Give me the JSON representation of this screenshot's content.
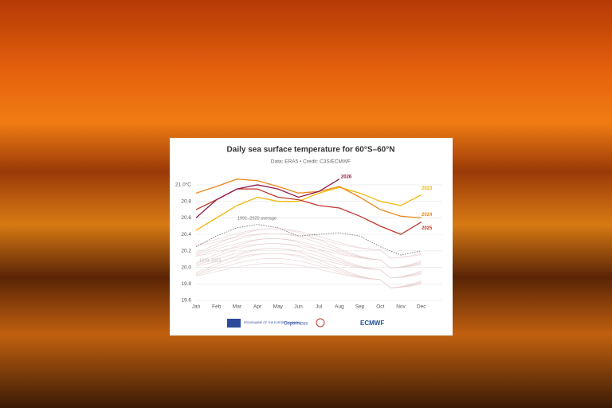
{
  "chart_data": {
    "type": "line",
    "title": "Daily sea surface temperature for 60°S–60°N",
    "subtitle": "Data: ERA5 • Credit: C3S/ECMWF",
    "categories": [
      "Jan",
      "Feb",
      "Mar",
      "Apr",
      "May",
      "Jun",
      "Jul",
      "Aug",
      "Sep",
      "Oct",
      "Nov",
      "Dec"
    ],
    "series": [
      {
        "name": "1991–2020 average",
        "color": "#777777",
        "dash": true,
        "values": [
          20.25,
          20.38,
          20.48,
          20.52,
          20.48,
          20.38,
          20.4,
          20.42,
          20.38,
          20.25,
          20.15,
          20.2
        ]
      },
      {
        "name": "2023",
        "color": "#f2b705",
        "values": [
          20.45,
          20.6,
          20.75,
          20.85,
          20.8,
          20.8,
          20.9,
          20.97,
          20.9,
          20.8,
          20.75,
          20.88
        ]
      },
      {
        "name": "2024",
        "color": "#e8891a",
        "values": [
          20.9,
          20.98,
          21.07,
          21.05,
          20.98,
          20.9,
          20.92,
          20.98,
          20.85,
          20.7,
          20.62,
          20.6
        ]
      },
      {
        "name": "2025",
        "color": "#c0392b",
        "values": [
          20.7,
          20.82,
          20.95,
          20.95,
          20.85,
          20.82,
          20.75,
          20.72,
          20.62,
          20.5,
          20.4,
          20.55
        ]
      },
      {
        "name": "2026",
        "color": "#8e1a4a",
        "values": [
          20.6,
          20.82,
          20.95,
          21.0,
          20.95,
          20.85,
          20.92,
          21.07,
          null,
          null,
          null,
          null
        ]
      }
    ],
    "annotations": [
      "1979–2021"
    ],
    "ylim": [
      19.6,
      21.1
    ],
    "yticks": [
      19.6,
      19.8,
      {
        "value": 20.0,
        "label": "20.0"
      },
      20.2,
      20.4,
      20.6,
      20.8,
      {
        "value": 21.0,
        "label": "21.0°C"
      }
    ],
    "grid": true,
    "footer": [
      "PROGRAMME OF THE EUROPEAN UNION",
      "Copernicus",
      "ECMWF"
    ]
  }
}
